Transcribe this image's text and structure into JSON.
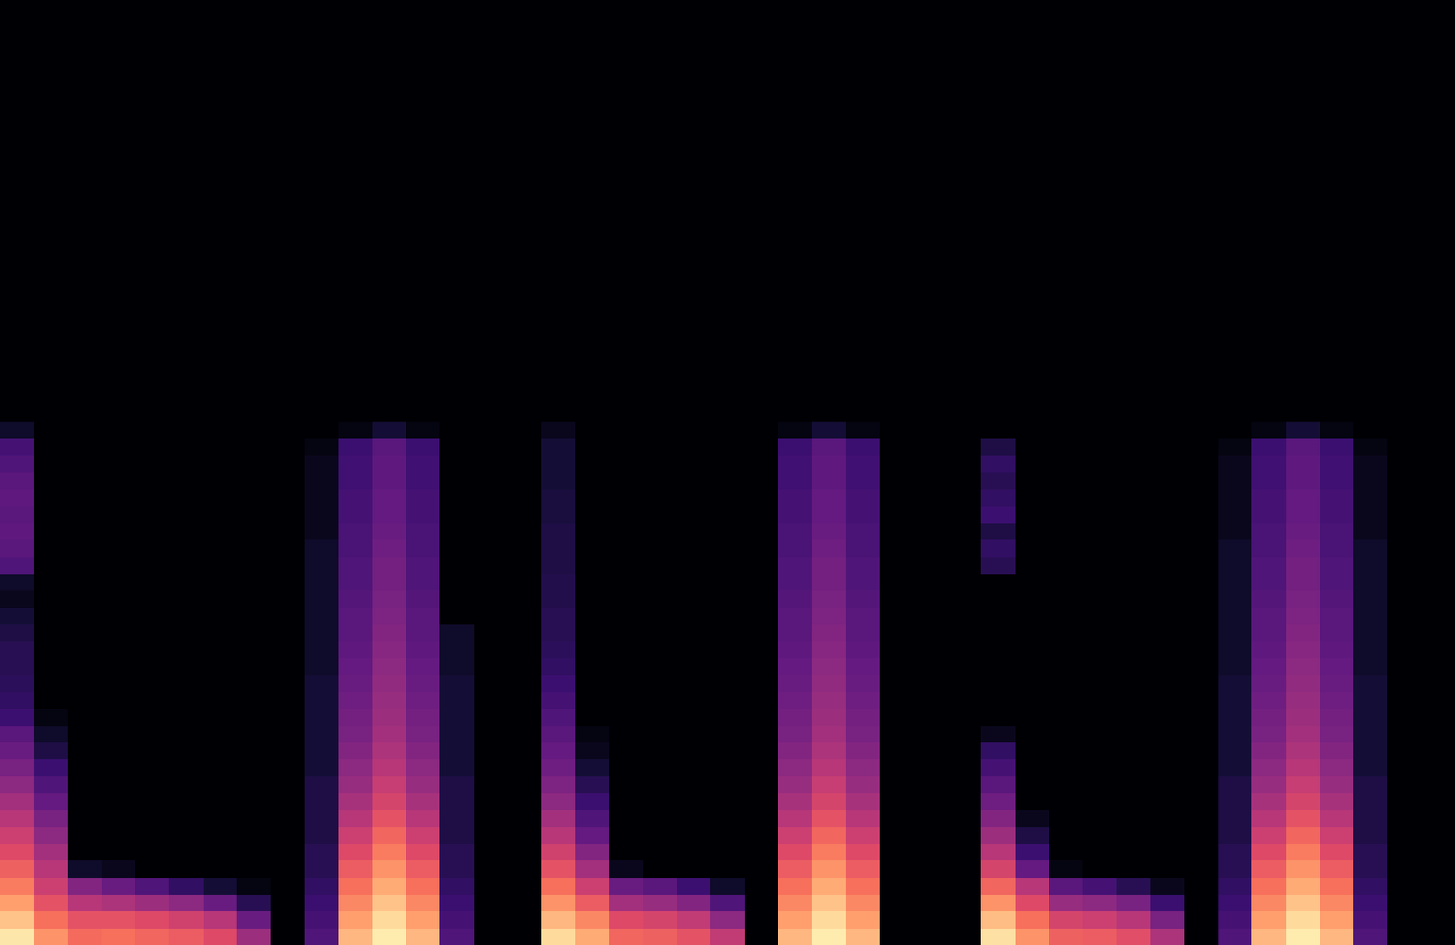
{
  "chart_data": {
    "type": "heatmap",
    "color": "magma",
    "tick_labels": false,
    "grid": false,
    "x": [
      0,
      1,
      2,
      3,
      4,
      5,
      6,
      7,
      8,
      9,
      10,
      11,
      12,
      13,
      14,
      15,
      16,
      17,
      18,
      19,
      20,
      21,
      22,
      23,
      24,
      25,
      26,
      27,
      28,
      29,
      30,
      31,
      32,
      33,
      34,
      35,
      36,
      37,
      38,
      39,
      40,
      41,
      42
    ],
    "y": [
      0,
      1,
      2,
      3,
      4,
      5,
      6,
      7,
      8,
      9,
      10,
      11,
      12,
      13,
      14,
      15,
      16,
      17,
      18,
      19,
      20,
      21,
      22,
      23,
      24,
      25,
      26,
      27,
      28,
      29,
      30
    ],
    "xlim": [
      -0.5,
      42.5
    ],
    "ylim": [
      -0.5,
      55.5
    ],
    "zlim": [
      -80,
      0
    ],
    "z": [
      [
        -4,
        -18,
        -25,
        -24,
        -26,
        -28,
        -32,
        -45,
        -80,
        -60,
        -12,
        -3,
        -12,
        -60,
        -80,
        -80,
        -6,
        -14,
        -26,
        -27,
        -30,
        -38,
        -80,
        -12,
        -3,
        -12,
        -80,
        -80,
        -80,
        -5,
        -18,
        -27,
        -28,
        -31,
        -42,
        -80,
        -60,
        -12,
        -3,
        -12,
        -60,
        -80,
        -80
      ],
      [
        -10,
        -24,
        -30,
        -30,
        -32,
        -35,
        -40,
        -55,
        -80,
        -62,
        -16,
        -6,
        -16,
        -62,
        -80,
        -80,
        -12,
        -20,
        -32,
        -34,
        -38,
        -48,
        -80,
        -16,
        -6,
        -16,
        -80,
        -80,
        -80,
        -11,
        -24,
        -34,
        -36,
        -40,
        -52,
        -80,
        -62,
        -16,
        -6,
        -16,
        -62,
        -80,
        -80
      ],
      [
        -16,
        -30,
        -40,
        -42,
        -45,
        -48,
        -55,
        -68,
        -80,
        -64,
        -20,
        -10,
        -20,
        -64,
        -80,
        -80,
        -18,
        -28,
        -44,
        -46,
        -50,
        -60,
        -80,
        -20,
        -10,
        -20,
        -80,
        -80,
        -80,
        -18,
        -32,
        -46,
        -48,
        -52,
        -64,
        -80,
        -64,
        -20,
        -10,
        -20,
        -64,
        -80,
        -80
      ],
      [
        -22,
        -36,
        -50,
        -55,
        -60,
        -66,
        -72,
        -78,
        -80,
        -66,
        -24,
        -14,
        -24,
        -66,
        -80,
        -80,
        -24,
        -36,
        -55,
        -58,
        -64,
        -74,
        -80,
        -24,
        -14,
        -24,
        -80,
        -80,
        -80,
        -26,
        -40,
        -58,
        -62,
        -68,
        -76,
        -80,
        -66,
        -24,
        -14,
        -24,
        -66,
        -80,
        -80
      ],
      [
        -27,
        -40,
        -74,
        -76,
        -80,
        -80,
        -80,
        -80,
        -80,
        -68,
        -28,
        -18,
        -28,
        -68,
        -80,
        -80,
        -30,
        -44,
        -76,
        -80,
        -80,
        -80,
        -80,
        -28,
        -18,
        -28,
        -80,
        -80,
        -80,
        -34,
        -56,
        -78,
        -80,
        -80,
        -80,
        -80,
        -68,
        -28,
        -18,
        -28,
        -68,
        -80,
        -80
      ],
      [
        -32,
        -44,
        -80,
        -80,
        -80,
        -80,
        -80,
        -80,
        -80,
        -68,
        -32,
        -22,
        -32,
        -68,
        -80,
        -80,
        -35,
        -50,
        -80,
        -80,
        -80,
        -80,
        -80,
        -32,
        -22,
        -32,
        -80,
        -80,
        -80,
        -40,
        -64,
        -80,
        -80,
        -80,
        -80,
        -80,
        -68,
        -32,
        -22,
        -32,
        -68,
        -80,
        -80
      ],
      [
        -36,
        -48,
        -80,
        -80,
        -80,
        -80,
        -80,
        -80,
        -80,
        -70,
        -36,
        -26,
        -36,
        -70,
        -80,
        -80,
        -40,
        -56,
        -80,
        -80,
        -80,
        -80,
        -80,
        -36,
        -26,
        -36,
        -80,
        -80,
        -80,
        -45,
        -70,
        -80,
        -80,
        -80,
        -80,
        -80,
        -70,
        -36,
        -26,
        -36,
        -70,
        -80,
        -80
      ],
      [
        -40,
        -52,
        -80,
        -80,
        -80,
        -80,
        -80,
        -80,
        -80,
        -70,
        -40,
        -30,
        -40,
        -70,
        -80,
        -80,
        -44,
        -60,
        -80,
        -80,
        -80,
        -80,
        -80,
        -40,
        -30,
        -40,
        -80,
        -80,
        -80,
        -50,
        -76,
        -80,
        -80,
        -80,
        -80,
        -80,
        -70,
        -40,
        -30,
        -40,
        -70,
        -80,
        -80
      ],
      [
        -44,
        -56,
        -80,
        -80,
        -80,
        -80,
        -80,
        -80,
        -80,
        -70,
        -43,
        -34,
        -43,
        -70,
        -80,
        -80,
        -48,
        -64,
        -80,
        -80,
        -80,
        -80,
        -80,
        -43,
        -34,
        -43,
        -80,
        -80,
        -80,
        -54,
        -80,
        -80,
        -80,
        -80,
        -80,
        -80,
        -70,
        -43,
        -34,
        -43,
        -70,
        -80,
        -80
      ],
      [
        -48,
        -60,
        -80,
        -80,
        -80,
        -80,
        -80,
        -80,
        -80,
        -70,
        -46,
        -37,
        -46,
        -70,
        -80,
        -80,
        -51,
        -68,
        -80,
        -80,
        -80,
        -80,
        -80,
        -46,
        -37,
        -46,
        -80,
        -80,
        -80,
        -58,
        -80,
        -80,
        -80,
        -80,
        -80,
        -80,
        -70,
        -46,
        -37,
        -46,
        -70,
        -80,
        -80
      ],
      [
        -52,
        -64,
        -80,
        -80,
        -80,
        -80,
        -80,
        -80,
        -80,
        -72,
        -48,
        -40,
        -48,
        -72,
        -80,
        -80,
        -54,
        -72,
        -80,
        -80,
        -80,
        -80,
        -80,
        -48,
        -40,
        -48,
        -80,
        -80,
        -80,
        -62,
        -80,
        -80,
        -80,
        -80,
        -80,
        -80,
        -72,
        -48,
        -40,
        -48,
        -72,
        -80,
        -80
      ],
      [
        -55,
        -70,
        -80,
        -80,
        -80,
        -80,
        -80,
        -80,
        -80,
        -72,
        -50,
        -42,
        -50,
        -72,
        -80,
        -80,
        -56,
        -76,
        -80,
        -80,
        -80,
        -80,
        -80,
        -50,
        -42,
        -50,
        -80,
        -80,
        -80,
        -66,
        -80,
        -80,
        -80,
        -80,
        -80,
        -80,
        -72,
        -50,
        -42,
        -50,
        -72,
        -80,
        -80
      ],
      [
        -58,
        -74,
        -80,
        -80,
        -80,
        -80,
        -80,
        -80,
        -80,
        -72,
        -52,
        -44,
        -52,
        -72,
        -80,
        -80,
        -58,
        -78,
        -80,
        -80,
        -80,
        -80,
        -80,
        -52,
        -44,
        -52,
        -80,
        -80,
        -80,
        -76,
        -80,
        -80,
        -80,
        -80,
        -80,
        -80,
        -72,
        -52,
        -44,
        -52,
        -72,
        -80,
        -80
      ],
      [
        -64,
        -78,
        -80,
        -80,
        -80,
        -80,
        -80,
        -80,
        -80,
        -72,
        -53,
        -45,
        -53,
        -72,
        -80,
        -80,
        -60,
        -80,
        -80,
        -80,
        -80,
        -80,
        -80,
        -53,
        -45,
        -53,
        -80,
        -80,
        -80,
        -80,
        -80,
        -80,
        -80,
        -80,
        -80,
        -80,
        -72,
        -53,
        -45,
        -53,
        -72,
        -80,
        -80
      ],
      [
        -66,
        -80,
        -80,
        -80,
        -80,
        -80,
        -80,
        -80,
        -80,
        -72,
        -54,
        -46,
        -54,
        -72,
        -80,
        -80,
        -62,
        -80,
        -80,
        -80,
        -80,
        -80,
        -80,
        -54,
        -46,
        -54,
        -80,
        -80,
        -80,
        -80,
        -80,
        -80,
        -80,
        -80,
        -80,
        -80,
        -72,
        -54,
        -46,
        -54,
        -72,
        -80,
        -80
      ],
      [
        -67,
        -80,
        -80,
        -80,
        -80,
        -80,
        -80,
        -80,
        -80,
        -72,
        -55,
        -47,
        -55,
        -72,
        -80,
        -80,
        -64,
        -80,
        -80,
        -80,
        -80,
        -80,
        -80,
        -55,
        -47,
        -55,
        -80,
        -80,
        -80,
        -80,
        -80,
        -80,
        -80,
        -80,
        -80,
        -80,
        -72,
        -55,
        -47,
        -55,
        -72,
        -80,
        -80
      ],
      [
        -68,
        -80,
        -80,
        -80,
        -80,
        -80,
        -80,
        -80,
        -80,
        -74,
        -56,
        -48,
        -56,
        -74,
        -80,
        -80,
        -66,
        -80,
        -80,
        -80,
        -80,
        -80,
        -80,
        -56,
        -48,
        -56,
        -80,
        -80,
        -80,
        -80,
        -80,
        -80,
        -80,
        -80,
        -80,
        -80,
        -74,
        -56,
        -48,
        -56,
        -74,
        -80,
        -80
      ],
      [
        -68,
        -80,
        -80,
        -80,
        -80,
        -80,
        -80,
        -80,
        -80,
        -74,
        -57,
        -49,
        -57,
        -74,
        -80,
        -80,
        -67,
        -80,
        -80,
        -80,
        -80,
        -80,
        -80,
        -57,
        -49,
        -57,
        -80,
        -80,
        -80,
        -80,
        -80,
        -80,
        -80,
        -80,
        -80,
        -80,
        -74,
        -57,
        -49,
        -57,
        -74,
        -80,
        -80
      ],
      [
        -70,
        -80,
        -80,
        -80,
        -80,
        -80,
        -80,
        -80,
        -80,
        -74,
        -58,
        -50,
        -58,
        -74,
        -80,
        -80,
        -68,
        -80,
        -80,
        -80,
        -80,
        -80,
        -80,
        -58,
        -50,
        -58,
        -80,
        -80,
        -80,
        -80,
        -80,
        -80,
        -80,
        -80,
        -80,
        -80,
        -74,
        -58,
        -50,
        -58,
        -74,
        -80,
        -80
      ],
      [
        -72,
        -80,
        -80,
        -80,
        -80,
        -80,
        -80,
        -80,
        -80,
        -74,
        -58,
        -51,
        -58,
        -80,
        -80,
        -80,
        -68,
        -80,
        -80,
        -80,
        -80,
        -80,
        -80,
        -58,
        -51,
        -58,
        -80,
        -80,
        -80,
        -80,
        -80,
        -80,
        -80,
        -80,
        -80,
        -80,
        -74,
        -58,
        -51,
        -58,
        -74,
        -80,
        -80
      ],
      [
        -76,
        -80,
        -80,
        -80,
        -80,
        -80,
        -80,
        -80,
        -80,
        -74,
        -59,
        -52,
        -59,
        -80,
        -80,
        -80,
        -69,
        -80,
        -80,
        -80,
        -80,
        -80,
        -80,
        -59,
        -52,
        -59,
        -80,
        -80,
        -80,
        -80,
        -80,
        -80,
        -80,
        -80,
        -80,
        -80,
        -74,
        -59,
        -52,
        -59,
        -74,
        -80,
        -80
      ],
      [
        -74,
        -80,
        -80,
        -80,
        -80,
        -80,
        -80,
        -80,
        -80,
        -74,
        -60,
        -53,
        -60,
        -80,
        -80,
        -80,
        -69,
        -80,
        -80,
        -80,
        -80,
        -80,
        -80,
        -60,
        -53,
        -60,
        -80,
        -80,
        -80,
        -80,
        -80,
        -80,
        -80,
        -80,
        -80,
        -80,
        -74,
        -60,
        -53,
        -60,
        -74,
        -80,
        -80
      ],
      [
        -60,
        -80,
        -80,
        -80,
        -80,
        -80,
        -80,
        -80,
        -80,
        -74,
        -60,
        -53,
        -60,
        -80,
        -80,
        -80,
        -70,
        -80,
        -80,
        -80,
        -80,
        -80,
        -80,
        -60,
        -53,
        -60,
        -80,
        -80,
        -80,
        -68,
        -80,
        -80,
        -80,
        -80,
        -80,
        -80,
        -74,
        -60,
        -53,
        -60,
        -74,
        -80,
        -80
      ],
      [
        -58,
        -80,
        -80,
        -80,
        -80,
        -80,
        -80,
        -80,
        -80,
        -74,
        -61,
        -54,
        -61,
        -80,
        -80,
        -80,
        -70,
        -80,
        -80,
        -80,
        -80,
        -80,
        -80,
        -61,
        -54,
        -61,
        -80,
        -80,
        -80,
        -66,
        -80,
        -80,
        -80,
        -80,
        -80,
        -80,
        -74,
        -61,
        -54,
        -61,
        -74,
        -80,
        -80
      ],
      [
        -57,
        -80,
        -80,
        -80,
        -80,
        -80,
        -80,
        -80,
        -80,
        -76,
        -61,
        -55,
        -61,
        -80,
        -80,
        -80,
        -70,
        -80,
        -80,
        -80,
        -80,
        -80,
        -80,
        -61,
        -55,
        -61,
        -80,
        -80,
        -80,
        -70,
        -80,
        -80,
        -80,
        -80,
        -80,
        -80,
        -76,
        -61,
        -55,
        -61,
        -76,
        -80,
        -80
      ],
      [
        -58,
        -80,
        -80,
        -80,
        -80,
        -80,
        -80,
        -80,
        -80,
        -76,
        -62,
        -56,
        -62,
        -80,
        -80,
        -80,
        -71,
        -80,
        -80,
        -80,
        -80,
        -80,
        -80,
        -62,
        -56,
        -62,
        -80,
        -80,
        -80,
        -64,
        -80,
        -80,
        -80,
        -80,
        -80,
        -80,
        -76,
        -62,
        -56,
        -62,
        -76,
        -80,
        -80
      ],
      [
        -57,
        -80,
        -80,
        -80,
        -80,
        -80,
        -80,
        -80,
        -80,
        -76,
        -62,
        -56,
        -62,
        -80,
        -80,
        -80,
        -71,
        -80,
        -80,
        -80,
        -80,
        -80,
        -80,
        -62,
        -56,
        -62,
        -80,
        -80,
        -80,
        -66,
        -80,
        -80,
        -80,
        -80,
        -80,
        -80,
        -76,
        -62,
        -56,
        -62,
        -76,
        -80,
        -80
      ],
      [
        -58,
        -80,
        -80,
        -80,
        -80,
        -80,
        -80,
        -80,
        -80,
        -76,
        -63,
        -57,
        -63,
        -80,
        -80,
        -80,
        -72,
        -80,
        -80,
        -80,
        -80,
        -80,
        -80,
        -63,
        -57,
        -63,
        -80,
        -80,
        -80,
        -68,
        -80,
        -80,
        -80,
        -80,
        -80,
        -80,
        -76,
        -63,
        -57,
        -63,
        -76,
        -80,
        -80
      ],
      [
        -60,
        -80,
        -80,
        -80,
        -80,
        -80,
        -80,
        -80,
        -80,
        -76,
        -63,
        -57,
        -63,
        -80,
        -80,
        -80,
        -72,
        -80,
        -80,
        -80,
        -80,
        -80,
        -80,
        -63,
        -57,
        -63,
        -80,
        -80,
        -80,
        -66,
        -80,
        -80,
        -80,
        -80,
        -80,
        -80,
        -76,
        -63,
        -57,
        -63,
        -76,
        -80,
        -80
      ],
      [
        -62,
        -80,
        -80,
        -80,
        -80,
        -80,
        -80,
        -80,
        -80,
        -78,
        -64,
        -58,
        -64,
        -80,
        -80,
        -80,
        -72,
        -80,
        -80,
        -80,
        -80,
        -80,
        -80,
        -64,
        -58,
        -64,
        -80,
        -80,
        -80,
        -70,
        -80,
        -80,
        -80,
        -80,
        -80,
        -80,
        -78,
        -64,
        -58,
        -64,
        -78,
        -80,
        -80
      ],
      [
        -74,
        -80,
        -80,
        -80,
        -80,
        -80,
        -80,
        -80,
        -80,
        -80,
        -78,
        -72,
        -78,
        -80,
        -80,
        -80,
        -76,
        -80,
        -80,
        -80,
        -80,
        -80,
        -80,
        -78,
        -72,
        -78,
        -80,
        -80,
        -80,
        -80,
        -80,
        -80,
        -80,
        -80,
        -80,
        -80,
        -80,
        -78,
        -72,
        -78,
        -80,
        -80,
        -80
      ]
    ]
  }
}
